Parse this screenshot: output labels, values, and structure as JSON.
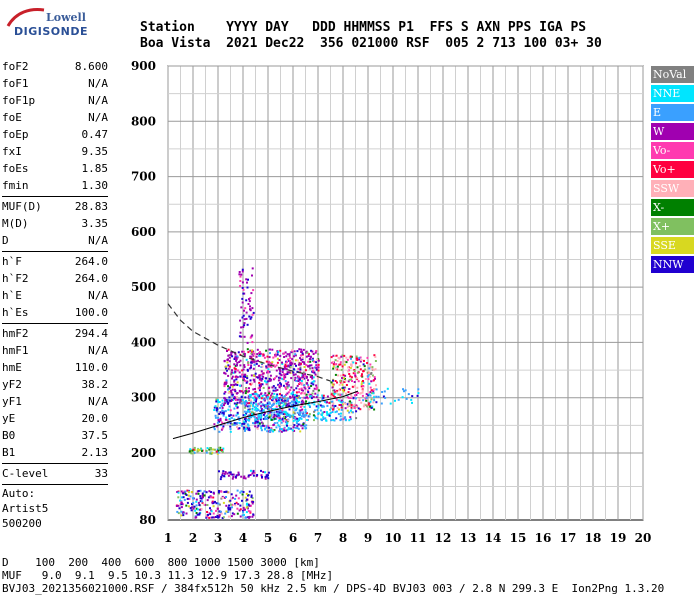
{
  "logo": {
    "line1": "Lowell",
    "line2": "DIGISONDE"
  },
  "header": {
    "line1": "Station    YYYY DAY   DDD HHMMSS P1  FFS S AXN PPS IGA PS",
    "line2": "Boa Vista  2021 Dec22  356 021000 RSF  005 2 713 100 03+ 30"
  },
  "params": {
    "group1": [
      {
        "label": "foF2",
        "value": "8.600"
      },
      {
        "label": "foF1",
        "value": "N/A"
      },
      {
        "label": "foF1p",
        "value": "N/A"
      },
      {
        "label": "foE",
        "value": "N/A"
      },
      {
        "label": "foEp",
        "value": "0.47"
      },
      {
        "label": "fxI",
        "value": "9.35"
      },
      {
        "label": "foEs",
        "value": "1.85"
      },
      {
        "label": "fmin",
        "value": "1.30"
      }
    ],
    "group2": [
      {
        "label": "MUF(D)",
        "value": "28.83"
      },
      {
        "label": "M(D)",
        "value": "3.35"
      },
      {
        "label": "D",
        "value": "N/A"
      }
    ],
    "group3": [
      {
        "label": "h`F",
        "value": "264.0"
      },
      {
        "label": "h`F2",
        "value": "264.0"
      },
      {
        "label": "h`E",
        "value": "N/A"
      },
      {
        "label": "h`Es",
        "value": "100.0"
      }
    ],
    "group4": [
      {
        "label": "hmF2",
        "value": "294.4"
      },
      {
        "label": "hmF1",
        "value": "N/A"
      },
      {
        "label": "hmE",
        "value": "110.0"
      },
      {
        "label": "yF2",
        "value": "38.2"
      },
      {
        "label": "yF1",
        "value": "N/A"
      },
      {
        "label": "yE",
        "value": "20.0"
      },
      {
        "label": "B0",
        "value": "37.5"
      },
      {
        "label": "B1",
        "value": "2.13"
      }
    ],
    "group5": [
      {
        "label": "C-level",
        "value": "33"
      }
    ],
    "auto_label": "Auto:",
    "artist": "Artist5",
    "code": "500200"
  },
  "legend": [
    {
      "label": "NoVal",
      "color": "#808080"
    },
    {
      "label": "NNE",
      "color": "#00e5ff"
    },
    {
      "label": "E",
      "color": "#3aa0ff"
    },
    {
      "label": "W",
      "color": "#a000b0"
    },
    {
      "label": "Vo-",
      "color": "#ff3ab0"
    },
    {
      "label": "Vo+",
      "color": "#ff0040"
    },
    {
      "label": "SSW",
      "color": "#ffb0b8"
    },
    {
      "label": "X-",
      "color": "#008000"
    },
    {
      "label": "X+",
      "color": "#80c060"
    },
    {
      "label": "SSE",
      "color": "#d8d820"
    },
    {
      "label": "NNW",
      "color": "#2000d0"
    }
  ],
  "chart_data": {
    "type": "scatter",
    "xlim": [
      1,
      20
    ],
    "ylim": [
      80,
      900
    ],
    "x_ticks": [
      "1",
      "2",
      "3",
      "4",
      "5",
      "6",
      "7",
      "8",
      "9",
      "10",
      "11",
      "12",
      "13",
      "14",
      "15",
      "16",
      "17",
      "18",
      "19",
      "20"
    ],
    "y_ticks": [
      "80",
      "200",
      "300",
      "400",
      "500",
      "600",
      "700",
      "800",
      "900"
    ],
    "profile_curve": [
      [
        1.2,
        226
      ],
      [
        2,
        236
      ],
      [
        3,
        250
      ],
      [
        4,
        264
      ],
      [
        5,
        275
      ],
      [
        6,
        285
      ],
      [
        7,
        293
      ],
      [
        8,
        302
      ],
      [
        8.6,
        312
      ]
    ],
    "dashed_curve": [
      [
        1,
        470
      ],
      [
        1.5,
        440
      ],
      [
        2,
        420
      ],
      [
        3,
        395
      ],
      [
        4,
        375
      ],
      [
        5,
        360
      ],
      [
        6,
        348
      ],
      [
        7,
        338
      ],
      [
        7.5,
        330
      ]
    ]
  },
  "footer": {
    "line1": "D    100  200  400  600  800 1000 1500 3000 [km]",
    "line2": "MUF   9.0  9.1  9.5 10.3 11.3 12.9 17.3 28.8 [MHz]",
    "line3": "BVJ03_2021356021000.RSF / 384fx512h 50 kHz 2.5 km / DPS-4D BVJ03 003 / 2.8 N 299.3 E  Ion2Png 1.3.20"
  }
}
